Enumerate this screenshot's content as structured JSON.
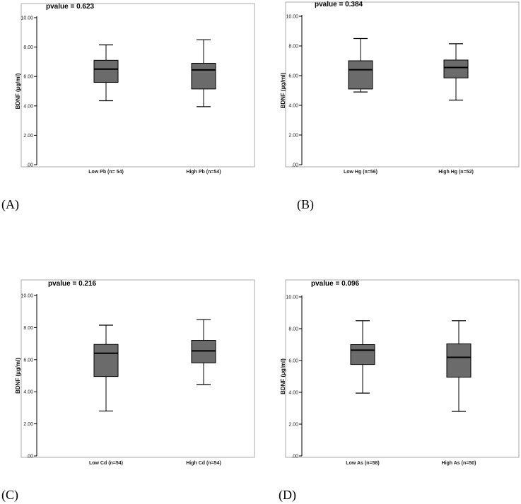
{
  "figure": {
    "panels": [
      {
        "letter": "(A)",
        "pvalue_text": "pvalue = 0.623"
      },
      {
        "letter": "(B)",
        "pvalue_text": "pvalue = 0.384"
      },
      {
        "letter": "(C)",
        "pvalue_text": "pvalue = 0.216"
      },
      {
        "letter": "(D)",
        "pvalue_text": "pvalue = 0.096"
      }
    ]
  },
  "colors": {
    "box_fill": "#6b6b6b",
    "frame": "#a8a8a8",
    "line": "#000000"
  },
  "chart_data": [
    {
      "type": "boxplot",
      "title": "pvalue = 0.623",
      "ylabel": "BDNF (µg/ml)",
      "ylim": [
        0,
        10
      ],
      "yticks": [
        ".00",
        "2.00",
        "4.00",
        "6.00",
        "8.00",
        "10.00"
      ],
      "categories": [
        "Low Pb (n= 54)",
        "High Pb (n=54)"
      ],
      "boxes": [
        {
          "min": 4.35,
          "q1": 5.6,
          "median": 6.5,
          "q3": 7.1,
          "max": 8.15
        },
        {
          "min": 3.95,
          "q1": 5.15,
          "median": 6.45,
          "q3": 6.9,
          "max": 8.5
        }
      ]
    },
    {
      "type": "boxplot",
      "title": "pvalue = 0.384",
      "ylabel": "BDNF (µg/ml)",
      "ylim": [
        0,
        10
      ],
      "yticks": [
        ".00",
        "2.00",
        "4.00",
        "6.00",
        "8.00",
        "10.00"
      ],
      "categories": [
        "Low Hg (n=56)",
        "High Hg (n=52)"
      ],
      "boxes": [
        {
          "min": 4.9,
          "q1": 5.1,
          "median": 6.4,
          "q3": 7.0,
          "max": 8.5
        },
        {
          "min": 4.35,
          "q1": 5.85,
          "median": 6.55,
          "q3": 7.05,
          "max": 8.15
        }
      ]
    },
    {
      "type": "boxplot",
      "title": "pvalue = 0.216",
      "ylabel": "BDNF (µg/ml)",
      "ylim": [
        0,
        10
      ],
      "yticks": [
        ".00",
        "2.00",
        "4.00",
        "6.00",
        "8.00",
        "10.00"
      ],
      "categories": [
        "Low Cd (n=54)",
        "High Cd (n=54)"
      ],
      "boxes": [
        {
          "min": 2.8,
          "q1": 4.95,
          "median": 6.4,
          "q3": 6.95,
          "max": 8.15
        },
        {
          "min": 4.45,
          "q1": 5.8,
          "median": 6.55,
          "q3": 7.2,
          "max": 8.5
        }
      ]
    },
    {
      "type": "boxplot",
      "title": "pvalue = 0.096",
      "ylabel": "BDNF (µg/ml)",
      "ylim": [
        0,
        10
      ],
      "yticks": [
        ".00",
        "2.00",
        "4.00",
        "6.00",
        "8.00",
        "10.00"
      ],
      "categories": [
        "Low As (n=58)",
        "High As (n=50)"
      ],
      "boxes": [
        {
          "min": 3.95,
          "q1": 5.75,
          "median": 6.65,
          "q3": 7.0,
          "max": 8.5
        },
        {
          "min": 2.8,
          "q1": 4.95,
          "median": 6.2,
          "q3": 7.05,
          "max": 8.5
        }
      ]
    }
  ]
}
